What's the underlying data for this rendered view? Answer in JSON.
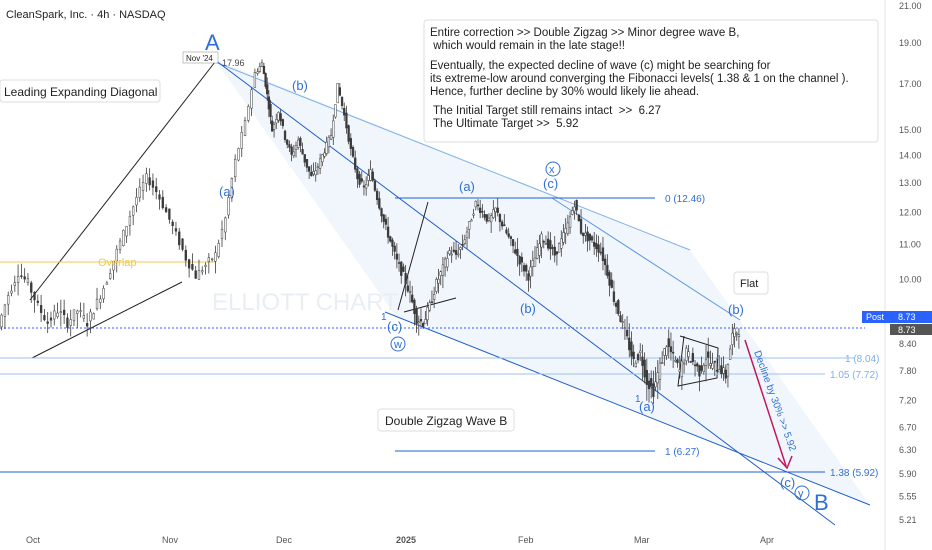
{
  "header": {
    "symbol": "CleanSpark, Inc. · 4h · NASDAQ",
    "title": "CleanSpark, Inc. · 4h · NASDAQ"
  },
  "chart_data": {
    "type": "candlestick",
    "title": "CleanSpark, Inc. · 4h · NASDAQ",
    "x_ticks": [
      "Oct",
      "Nov",
      "Dec",
      "2025",
      "Feb",
      "Mar",
      "Apr"
    ],
    "y_ticks": [
      21.0,
      19.0,
      17.0,
      15.0,
      14.0,
      13.0,
      12.0,
      11.0,
      10.0,
      8.4,
      7.8,
      7.2,
      6.7,
      6.3,
      5.9,
      5.55,
      5.21
    ],
    "ylim": [
      5.1,
      21.5
    ],
    "y_scale": "log",
    "price_labels": {
      "post_label": "Post",
      "post_value": "8.73",
      "last_value": "8.73"
    },
    "high_marker": {
      "date_label": "Nov '24",
      "value": "17.96"
    },
    "price_path": [
      [
        0,
        8.8
      ],
      [
        6,
        9.6
      ],
      [
        12,
        10.2
      ],
      [
        18,
        9.9
      ],
      [
        24,
        9.3
      ],
      [
        30,
        8.9
      ],
      [
        36,
        9.2
      ],
      [
        42,
        8.9
      ],
      [
        48,
        9.2
      ],
      [
        54,
        8.9
      ],
      [
        60,
        9.4
      ],
      [
        66,
        10.0
      ],
      [
        72,
        10.8
      ],
      [
        78,
        11.6
      ],
      [
        84,
        12.5
      ],
      [
        90,
        13.2
      ],
      [
        96,
        12.7
      ],
      [
        102,
        12.0
      ],
      [
        108,
        11.3
      ],
      [
        114,
        10.6
      ],
      [
        120,
        10.1
      ],
      [
        126,
        10.4
      ],
      [
        132,
        10.7
      ],
      [
        138,
        11.8
      ],
      [
        144,
        13.8
      ],
      [
        150,
        15.3
      ],
      [
        156,
        17.5
      ],
      [
        160,
        17.96
      ],
      [
        163,
        16.5
      ],
      [
        166,
        15.0
      ],
      [
        170,
        15.8
      ],
      [
        174,
        14.7
      ],
      [
        178,
        14.0
      ],
      [
        182,
        14.6
      ],
      [
        186,
        13.8
      ],
      [
        190,
        13.2
      ],
      [
        194,
        13.6
      ],
      [
        198,
        14.2
      ],
      [
        202,
        14.8
      ],
      [
        206,
        16.9
      ],
      [
        210,
        15.6
      ],
      [
        214,
        14.2
      ],
      [
        218,
        13.2
      ],
      [
        222,
        12.8
      ],
      [
        226,
        13.4
      ],
      [
        230,
        12.5
      ],
      [
        234,
        11.7
      ],
      [
        238,
        11.1
      ],
      [
        242,
        10.5
      ],
      [
        246,
        10.1
      ],
      [
        250,
        9.6
      ],
      [
        254,
        9.0
      ],
      [
        258,
        8.9
      ],
      [
        262,
        9.3
      ],
      [
        266,
        9.9
      ],
      [
        270,
        10.3
      ],
      [
        274,
        10.8
      ],
      [
        278,
        10.7
      ],
      [
        282,
        11.0
      ],
      [
        286,
        11.6
      ],
      [
        290,
        12.3
      ],
      [
        294,
        12.0
      ],
      [
        298,
        11.7
      ],
      [
        302,
        12.1
      ],
      [
        306,
        11.6
      ],
      [
        310,
        11.2
      ],
      [
        314,
        10.8
      ],
      [
        318,
        10.4
      ],
      [
        322,
        10.1
      ],
      [
        326,
        10.6
      ],
      [
        330,
        11.2
      ],
      [
        334,
        11.0
      ],
      [
        338,
        10.7
      ],
      [
        342,
        11.1
      ],
      [
        346,
        11.6
      ],
      [
        350,
        12.3
      ],
      [
        354,
        11.4
      ],
      [
        358,
        11.2
      ],
      [
        362,
        11.0
      ],
      [
        366,
        10.8
      ],
      [
        370,
        10.2
      ],
      [
        374,
        9.5
      ],
      [
        378,
        9.0
      ],
      [
        382,
        8.5
      ],
      [
        386,
        8.0
      ],
      [
        390,
        8.2
      ],
      [
        394,
        7.6
      ],
      [
        398,
        7.4
      ],
      [
        402,
        7.9
      ],
      [
        406,
        8.4
      ],
      [
        410,
        8.1
      ],
      [
        414,
        7.8
      ],
      [
        418,
        8.2
      ],
      [
        422,
        8.0
      ],
      [
        426,
        7.8
      ],
      [
        430,
        8.1
      ],
      [
        434,
        7.9
      ],
      [
        438,
        7.9
      ],
      [
        442,
        7.7
      ],
      [
        446,
        8.6
      ],
      [
        450,
        8.73
      ]
    ]
  },
  "annotations": {
    "diagonal_label": "Leading Expanding Diagonal",
    "overlap_label": "Overlap",
    "watermark": "ELLIOTT CHART",
    "wave_labels": {
      "A": "A",
      "B": "B",
      "a1": "(a)",
      "b1": "(b)",
      "a2": "(a)",
      "b2": "(b)",
      "c1": "(c)",
      "c2": "(c)",
      "c3": "(c)",
      "a3": "(a)",
      "b3": "(b)",
      "w": "w",
      "x": "x",
      "y": "y",
      "one1": "1",
      "one2": "1"
    },
    "fib_levels": [
      {
        "label": "0 (12.46)"
      },
      {
        "label": "1 (8.04)"
      },
      {
        "label": "1.05 (7.72)"
      },
      {
        "label": "1 (6.27)"
      },
      {
        "label": "1.38 (5.92)"
      }
    ],
    "flat_label": "Flat",
    "decline_label": "Decline by 30% >> 5.92",
    "double_zigzag_label": "Double Zigzag Wave B",
    "text_box": {
      "line1": "Entire correction >> Double Zigzag >> Minor degree wave B,",
      "line2": " which would remain in the late stage!!",
      "line3": "Eventually, the expected decline of wave (c) might be searching for",
      "line4": "its extreme-low around converging the Fibonacci levels( 1.38 & 1 on the channel ).",
      "line5": "Hence, further decline by 30% would likely lie ahead.",
      "line6": " The Initial Target still remains intact  >>  6.27",
      "line7": " The Ultimate Target >>  5.92"
    }
  },
  "colors": {
    "candle": "#3a3a3a",
    "wave_label": "#2f6fd6",
    "channel": "#1f5fd0",
    "fib_line": "#7fb0e8",
    "overlap": "#f2c94c",
    "arrow": "#c2185b",
    "post_badge": "#2962ff"
  }
}
